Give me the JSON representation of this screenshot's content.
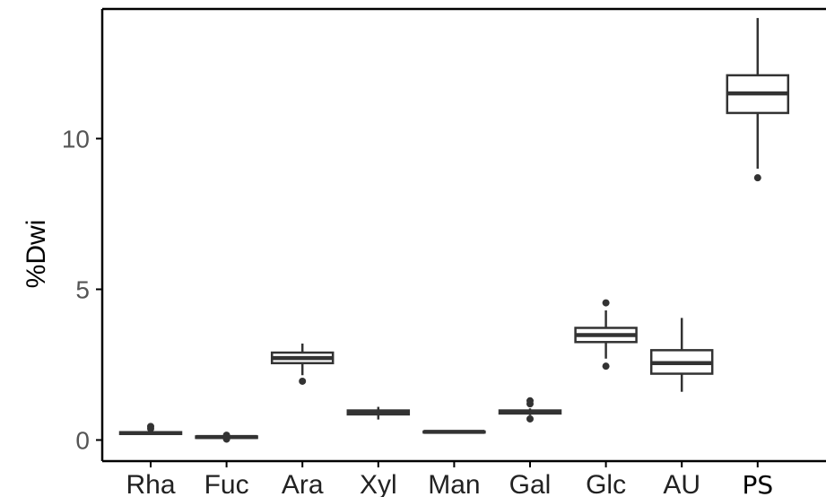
{
  "chart_data": {
    "type": "box",
    "title": "",
    "xlabel": "",
    "ylabel": "%Dwi",
    "ylim": [
      -0.7,
      14.3
    ],
    "yticks": [
      0,
      5,
      10
    ],
    "ytick_labels": [
      "0",
      "5",
      "10"
    ],
    "grid": false,
    "categories": [
      "Rha",
      "Fuc",
      "Ara",
      "Xyl",
      "Man",
      "Gal",
      "Glc",
      "AU",
      "PS"
    ],
    "boxes": [
      {
        "category": "Rha",
        "min": 0.18,
        "q1": 0.2,
        "median": 0.23,
        "q3": 0.26,
        "max": 0.3,
        "outliers": [
          0.38,
          0.45
        ]
      },
      {
        "category": "Fuc",
        "min": 0.05,
        "q1": 0.07,
        "median": 0.1,
        "q3": 0.12,
        "max": 0.14,
        "outliers": [
          0.03,
          0.16
        ]
      },
      {
        "category": "Ara",
        "min": 2.15,
        "q1": 2.55,
        "median": 2.72,
        "q3": 2.9,
        "max": 3.2,
        "outliers": [
          1.95
        ]
      },
      {
        "category": "Xyl",
        "min": 0.68,
        "q1": 0.85,
        "median": 0.9,
        "q3": 0.98,
        "max": 1.1,
        "outliers": []
      },
      {
        "category": "Man",
        "min": 0.24,
        "q1": 0.25,
        "median": 0.27,
        "q3": 0.28,
        "max": 0.29,
        "outliers": []
      },
      {
        "category": "Gal",
        "min": 0.82,
        "q1": 0.88,
        "median": 0.93,
        "q3": 0.98,
        "max": 1.05,
        "outliers": [
          0.7,
          1.2,
          1.3
        ]
      },
      {
        "category": "Glc",
        "min": 2.7,
        "q1": 3.25,
        "median": 3.48,
        "q3": 3.72,
        "max": 4.3,
        "outliers": [
          2.45,
          4.55
        ]
      },
      {
        "category": "AU",
        "min": 1.6,
        "q1": 2.2,
        "median": 2.55,
        "q3": 2.98,
        "max": 4.05,
        "outliers": []
      },
      {
        "category": "PS",
        "min": 9.0,
        "q1": 10.85,
        "median": 11.5,
        "q3": 12.1,
        "max": 14.0,
        "outliers": [
          8.7
        ]
      }
    ],
    "colors": {
      "box_stroke": "#333333",
      "box_fill": "#ffffff",
      "axis": "#000000"
    }
  }
}
